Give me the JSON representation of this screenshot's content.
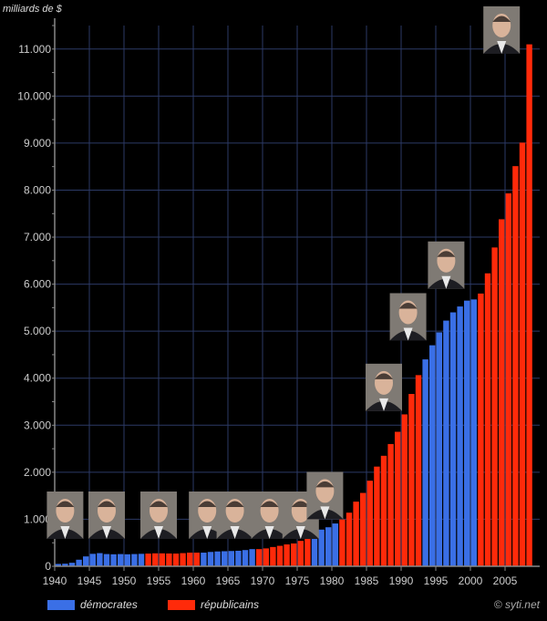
{
  "unit_label": "milliards de $",
  "credit": "© syti.net",
  "colors": {
    "democrat": "#3a6fe6",
    "republican": "#ff2a0a",
    "grid": "#2c3a66",
    "axis": "#888888"
  },
  "legend": [
    {
      "party": "D",
      "label": "démocrates"
    },
    {
      "party": "R",
      "label": "républicains"
    }
  ],
  "portraits": [
    {
      "name": "Roosevelt",
      "year": 1941.5,
      "value": 0,
      "party": "D",
      "icon": "portrait-icon"
    },
    {
      "name": "Truman",
      "year": 1947.5,
      "value": 0,
      "party": "D",
      "icon": "portrait-icon"
    },
    {
      "name": "Eisenhower",
      "year": 1955,
      "value": 0,
      "party": "R",
      "icon": "portrait-icon"
    },
    {
      "name": "Kennedy",
      "year": 1962,
      "value": 0,
      "party": "D",
      "icon": "portrait-icon"
    },
    {
      "name": "Johnson",
      "year": 1966,
      "value": 0,
      "party": "D",
      "icon": "portrait-icon"
    },
    {
      "name": "Nixon",
      "year": 1971,
      "value": 0,
      "party": "R",
      "icon": "portrait-icon"
    },
    {
      "name": "Ford",
      "year": 1975.5,
      "value": 0,
      "party": "R",
      "icon": "portrait-icon"
    },
    {
      "name": "Carter",
      "year": 1979,
      "value": 1000,
      "party": "D",
      "icon": "portrait-icon"
    },
    {
      "name": "Reagan",
      "year": 1987.5,
      "value": 3300,
      "party": "R",
      "icon": "portrait-icon"
    },
    {
      "name": "Bush",
      "year": 1991,
      "value": 4800,
      "party": "R",
      "icon": "portrait-icon"
    },
    {
      "name": "Clinton",
      "year": 1996.5,
      "value": 5900,
      "party": "D",
      "icon": "portrait-icon"
    },
    {
      "name": "Bush",
      "year": 2004.5,
      "value": 10900,
      "party": "R",
      "icon": "portrait-icon"
    }
  ],
  "chart_data": {
    "type": "bar",
    "title": "",
    "xlabel": "",
    "ylabel": "milliards de $",
    "ylim": [
      0,
      11500
    ],
    "xlim": [
      1940,
      2010
    ],
    "yticks": [
      0,
      1000,
      2000,
      3000,
      4000,
      5000,
      6000,
      7000,
      8000,
      9000,
      10000,
      11000
    ],
    "ytick_labels": [
      "0",
      "1.000",
      "2.000",
      "3.000",
      "4.000",
      "5.000",
      "6.000",
      "7.000",
      "8.000",
      "9.000",
      "10.000",
      "11.000"
    ],
    "xticks": [
      1940,
      1945,
      1950,
      1955,
      1960,
      1965,
      1970,
      1975,
      1980,
      1985,
      1990,
      1995,
      2000,
      2005
    ],
    "grid": true,
    "legend_position": "bottom-left",
    "series": [
      {
        "name": "démocrates",
        "party": "D",
        "x": [
          1940,
          1941,
          1942,
          1943,
          1944,
          1945,
          1946,
          1947,
          1948,
          1949,
          1950,
          1951,
          1952,
          1961,
          1962,
          1963,
          1964,
          1965,
          1966,
          1967,
          1968,
          1977,
          1978,
          1979,
          1980,
          1993,
          1994,
          1995,
          1996,
          1997,
          1998,
          1999,
          2000
        ],
        "values": [
          50,
          55,
          75,
          140,
          210,
          265,
          280,
          260,
          255,
          260,
          255,
          260,
          265,
          290,
          305,
          315,
          320,
          325,
          330,
          345,
          365,
          700,
          780,
          830,
          910,
          4400,
          4700,
          4975,
          5225,
          5400,
          5525,
          5650,
          5675
        ]
      },
      {
        "name": "républicains",
        "party": "R",
        "x": [
          1953,
          1954,
          1955,
          1956,
          1957,
          1958,
          1959,
          1960,
          1969,
          1970,
          1971,
          1972,
          1973,
          1974,
          1975,
          1976,
          1981,
          1982,
          1983,
          1984,
          1985,
          1986,
          1987,
          1988,
          1989,
          1990,
          1991,
          1992,
          2001,
          2002,
          2003,
          2004,
          2005,
          2006,
          2007,
          2008
        ],
        "values": [
          270,
          275,
          275,
          272,
          270,
          280,
          290,
          290,
          365,
          380,
          410,
          435,
          465,
          485,
          540,
          630,
          995,
          1140,
          1375,
          1560,
          1820,
          2120,
          2350,
          2600,
          2860,
          3230,
          3665,
          4065,
          5800,
          6230,
          6780,
          7380,
          7930,
          8510,
          9010,
          11100
        ]
      }
    ]
  }
}
